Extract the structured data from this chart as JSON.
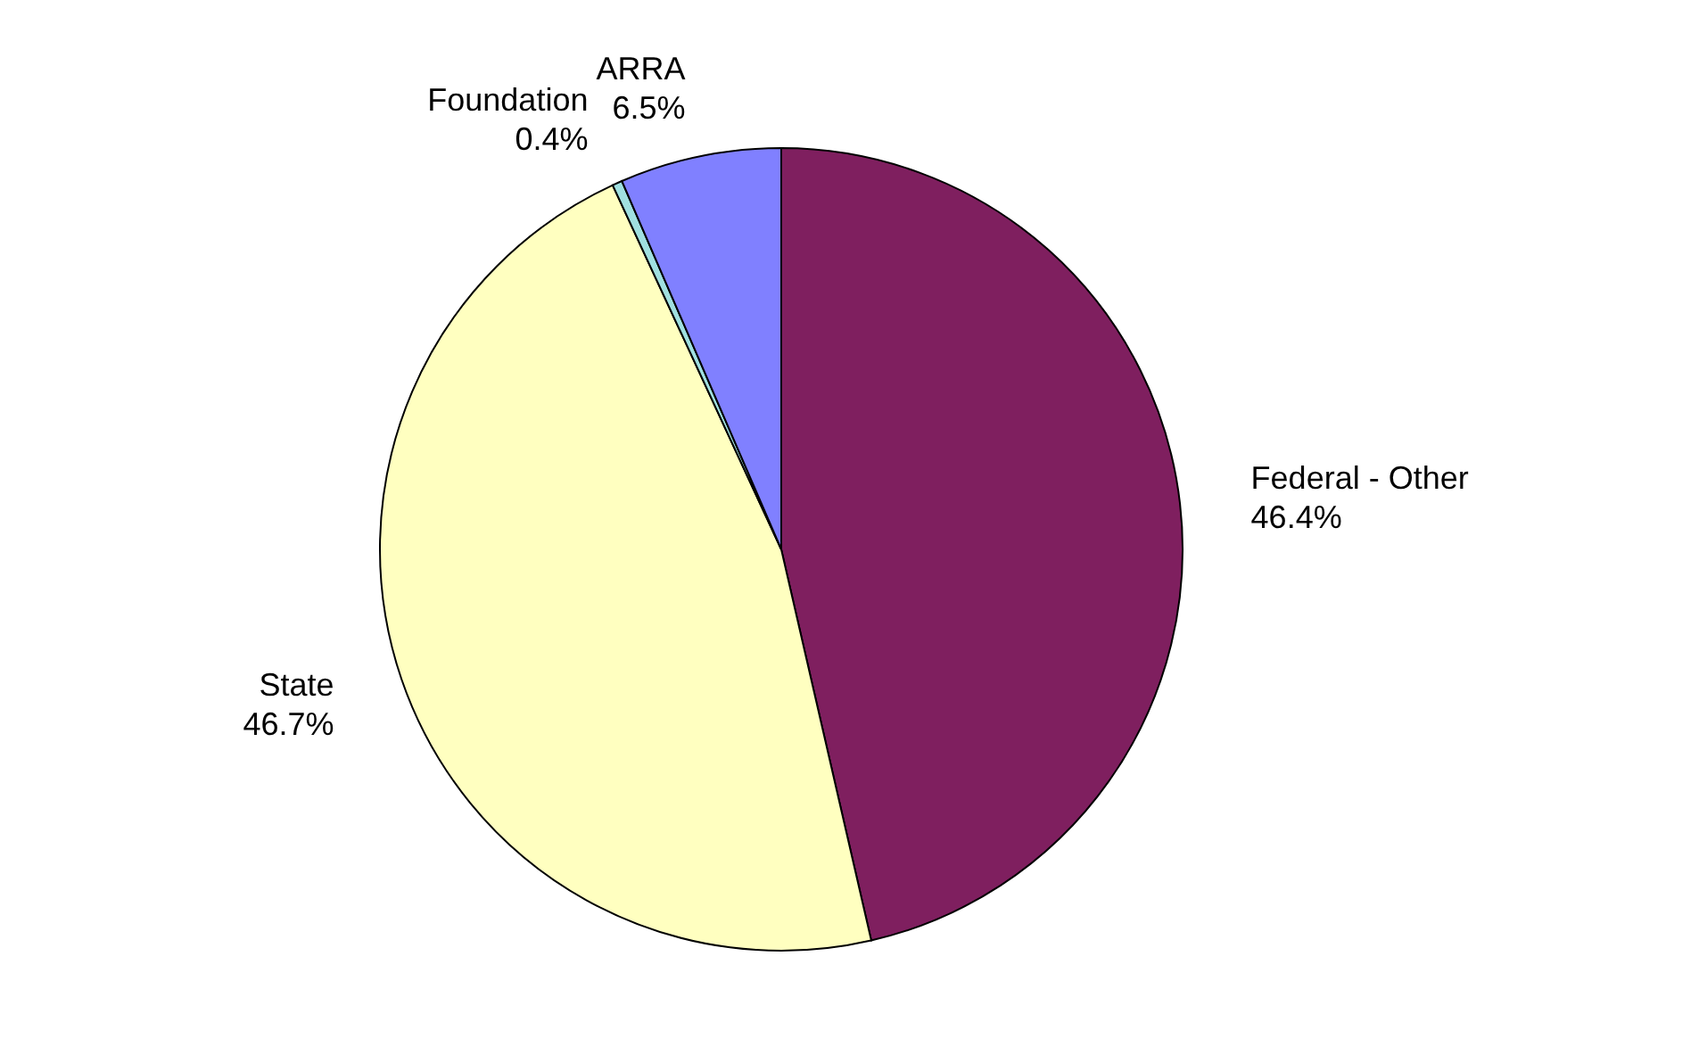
{
  "chart_data": {
    "type": "pie",
    "categories": [
      "Federal - Other",
      "State",
      "Foundation",
      "ARRA"
    ],
    "values": [
      46.4,
      46.7,
      0.4,
      6.5
    ],
    "colors": [
      "#7f1f5f",
      "#ffffc0",
      "#a0e0e0",
      "#8080ff"
    ],
    "value_labels": [
      "46.4%",
      "46.7%",
      "0.4%",
      "6.5%"
    ]
  }
}
